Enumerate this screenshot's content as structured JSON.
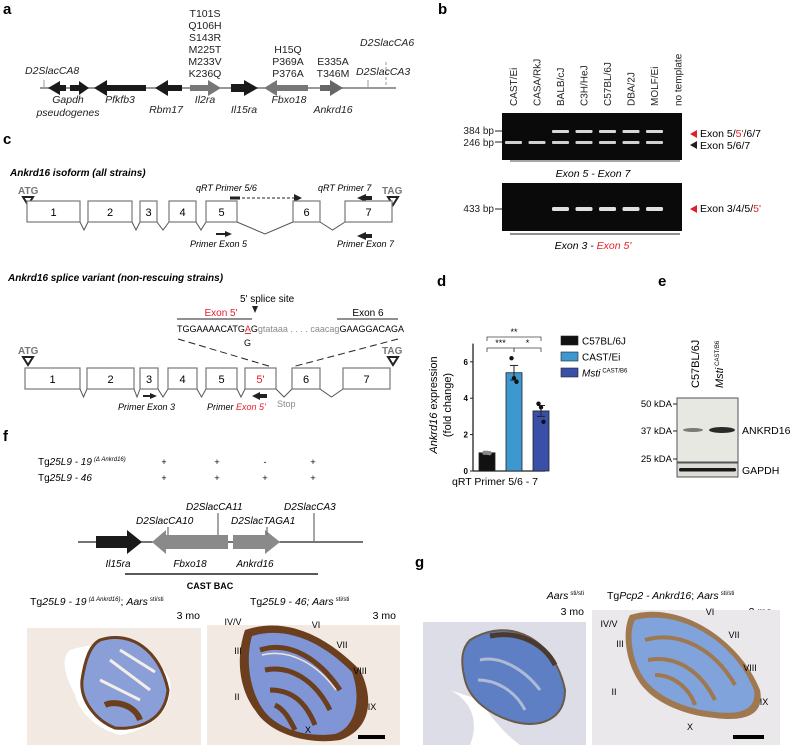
{
  "panel_labels": {
    "a": "a",
    "b": "b",
    "c": "c",
    "d": "d",
    "e": "e",
    "f": "f",
    "g": "g"
  },
  "panel_a": {
    "mutations_il2ra": [
      "T101S",
      "Q106H",
      "S143R",
      "M225T",
      "M233V",
      "K236Q"
    ],
    "mutations_fbxo18": [
      "H15Q",
      "P369A",
      "P376A"
    ],
    "mutations_ankrd16": [
      "E335A",
      "T346M"
    ],
    "markers": {
      "ca8": "D2SlacCA8",
      "ca6": "D2SlacCA6",
      "ca3": "D2SlacCA3"
    },
    "genes": {
      "gapdh": "Gapdh",
      "pseudogenes": "pseudogenes",
      "pfkfb3": "Pfkfb3",
      "rbm17": "Rbm17",
      "il2ra": "Il2ra",
      "il15ra": "Il15ra",
      "fbxo18": "Fbxo18",
      "ankrd16": "Ankrd16"
    }
  },
  "panel_b": {
    "lanes": [
      "CAST/Ei",
      "CASA/RkJ",
      "BALB/cJ",
      "C3H/HeJ",
      "C57BL/6J",
      "DBA/2J",
      "MOLF/Ei",
      "no template"
    ],
    "gel1": {
      "size_upper": "384 bp",
      "size_lower": "246 bp",
      "band_upper_a": "Exon 5/",
      "band_upper_b": "5'",
      "band_upper_c": "/6/7",
      "band_lower": "Exon 5/6/7",
      "caption": "Exon 5 - Exon 7",
      "upper_band_lanes": [
        false,
        false,
        true,
        true,
        true,
        true,
        true,
        false
      ],
      "lower_band_lanes": [
        true,
        true,
        true,
        true,
        true,
        true,
        true,
        false
      ]
    },
    "gel2": {
      "size": "433 bp",
      "band_a": "Exon 3/4/5/",
      "band_b": "5'",
      "caption_a": "Exon 3 - ",
      "caption_b": "Exon 5'",
      "band_lanes": [
        false,
        false,
        true,
        true,
        true,
        true,
        true,
        false
      ]
    },
    "colors": {
      "red": "#e0202a",
      "gel": "#0a0a0a"
    }
  },
  "panel_c": {
    "isoform_title": "Ankrd16 isoform (all strains)",
    "variant_title": "Ankrd16 splice variant (non-rescuing strains)",
    "atg": "ATG",
    "tag": "TAG",
    "exons": [
      "1",
      "2",
      "3",
      "4",
      "5",
      "6",
      "7"
    ],
    "exon_5prime": "5'",
    "qrt_primer_56": "qRT Primer 5/6",
    "qrt_primer_7": "qRT Primer 7",
    "primer_exon5": "Primer Exon 5",
    "primer_exon7": "Primer Exon 7",
    "primer_exon3": "Primer Exon 3",
    "primer_exon5p_a": "Primer ",
    "primer_exon5p_b": "Exon 5'",
    "splice_site": "5' splice site",
    "seq_exon5p": "Exon 5'",
    "seq_exon6": "Exon 6",
    "seq_a": "TGGAAAACATG",
    "seq_b": "A",
    "seq_c": "G",
    "seq_d": "gtataaa . . . . caacag",
    "seq_e": "GAAGGACAGA",
    "seq_sub": "G",
    "stop": "Stop"
  },
  "chart_data": {
    "type": "bar",
    "categories": [
      "C57BL/6J",
      "CAST/Ei",
      "Msti CAST/B6"
    ],
    "values": [
      1.0,
      5.4,
      3.3
    ],
    "errors": [
      0.05,
      0.4,
      0.3
    ],
    "points": [
      [
        1.0,
        1.0,
        0.98
      ],
      [
        6.2,
        5.1,
        4.9
      ],
      [
        3.7,
        3.5,
        2.7
      ]
    ],
    "colors": [
      "#111111",
      "#3d98cf",
      "#3a4fa8"
    ],
    "xlabel": "qRT Primer 5/6 - 7",
    "ylabel_a": "Ankrd16",
    "ylabel_b": " expression",
    "ylabel_c": "(fold change)",
    "ylim": [
      0,
      7
    ],
    "yticks": [
      "0",
      "2",
      "4",
      "6"
    ],
    "legend": [
      {
        "name": "C57BL/6J"
      },
      {
        "name": "CAST/Ei"
      },
      {
        "name": "Msti",
        "sup": "CAST/B6"
      }
    ],
    "legend_position": "right",
    "significance": [
      {
        "pair": "C57BL/6J vs Msti",
        "label": "**"
      },
      {
        "pair": "C57BL/6J vs CAST/Ei",
        "label": "***"
      },
      {
        "pair": "CAST/Ei vs Msti",
        "label": "*"
      }
    ]
  },
  "panel_e": {
    "lane1": "C57BL/6J",
    "lane2": "Msti",
    "lane2_sup": "CAST/B6",
    "kda": [
      "50 kDA",
      "37 kDA",
      "25 kDA"
    ],
    "ankrd16": "ANKRD16",
    "gapdh": "GAPDH"
  },
  "panel_f": {
    "row1_a": "Tg",
    "row1_b": "25L9 - 19",
    "row1_sup": "(Δ Ankrd16)",
    "row2_a": "Tg",
    "row2_b": "25L9 - 46",
    "row1_signs": [
      "+",
      "+",
      "-",
      "+"
    ],
    "row2_signs": [
      "+",
      "+",
      "+",
      "+"
    ],
    "markers": {
      "ca10": "D2SlacCA10",
      "ca11": "D2SlacCA11",
      "taga1": "D2SlacTAGA1",
      "ca3": "D2SlacCA3"
    },
    "genes": {
      "il15ra": "Il15ra",
      "fbxo18": "Fbxo18",
      "ankrd16": "Ankrd16"
    },
    "bac": "CAST BAC",
    "img1_title_a": "Tg",
    "img1_title_b": "25L9 - 19",
    "img1_title_sup": "(Δ Ankrd16)",
    "img1_title_c": "; ",
    "img1_title_d": "Aars",
    "img1_title_sup2": "sti/sti",
    "img2_title_a": "Tg",
    "img2_title_b": "25L9 - 46; Aars",
    "img2_title_sup": "sti/sti",
    "age": "3 mo",
    "lobules": [
      "IV/V",
      "III",
      "II",
      "VI",
      "VII",
      "VIII",
      "IX",
      "X"
    ]
  },
  "panel_g": {
    "img1_title": "Aars",
    "img1_sup": "sti/sti",
    "img2_title_a": "Tg",
    "img2_title_b": "Pcp2 - Ankrd16",
    "img2_title_c": "; ",
    "img2_title_d": "Aars",
    "img2_sup": "sti/sti",
    "age": "3 mo",
    "lobules": [
      "IV/V",
      "III",
      "II",
      "VI",
      "VII",
      "VIII",
      "IX",
      "X"
    ]
  }
}
